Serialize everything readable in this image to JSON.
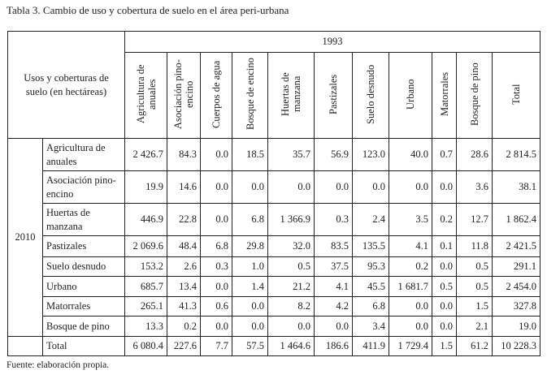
{
  "title": "Tabla 3. Cambio de uso y cobertura de suelo en el área peri-urbana",
  "row_header": "Usos y coberturas de suelo (en hectáreas)",
  "col_group": "1993",
  "row_group": "2010",
  "columns": [
    "Agricultura de anuales",
    "Asociación pino-encino",
    "Cuerpos de agua",
    "Bosque de encino",
    "Huertas de manzana",
    "Pastizales",
    "Suelo desnudo",
    "Urbano",
    "Matorrales",
    "Bosque de pino",
    "Total"
  ],
  "rows": [
    {
      "label": "Agricultura de anuales",
      "values": [
        "2 426.7",
        "84.3",
        "0.0",
        "18.5",
        "35.7",
        "56.9",
        "123.0",
        "40.0",
        "0.7",
        "28.6",
        "2 814.5"
      ]
    },
    {
      "label": "Asociación pino-encino",
      "values": [
        "19.9",
        "14.6",
        "0.0",
        "0.0",
        "0.0",
        "0.0",
        "0.0",
        "0.0",
        "0.0",
        "3.6",
        "38.1"
      ]
    },
    {
      "label": "Huertas de manzana",
      "values": [
        "446.9",
        "22.8",
        "0.0",
        "6.8",
        "1 366.9",
        "0.3",
        "2.4",
        "3.5",
        "0.2",
        "12.7",
        "1 862.4"
      ]
    },
    {
      "label": "Pastizales",
      "values": [
        "2 069.6",
        "48.4",
        "6.8",
        "29.8",
        "32.0",
        "83.5",
        "135.5",
        "4.1",
        "0.1",
        "11.8",
        "2 421.5"
      ]
    },
    {
      "label": "Suelo desnudo",
      "values": [
        "153.2",
        "2.6",
        "0.3",
        "1.0",
        "0.5",
        "37.5",
        "95.3",
        "0.2",
        "0.0",
        "0.5",
        "291.1"
      ]
    },
    {
      "label": "Urbano",
      "values": [
        "685.7",
        "13.4",
        "0.0",
        "1.4",
        "21.2",
        "4.1",
        "45.5",
        "1 681.7",
        "0.5",
        "0.5",
        "2 454.0"
      ]
    },
    {
      "label": "Matorrales",
      "values": [
        "265.1",
        "41.3",
        "0.6",
        "0.0",
        "8.2",
        "4.2",
        "6.8",
        "0.0",
        "0.0",
        "1.5",
        "327.8"
      ]
    },
    {
      "label": "Bosque de pino",
      "values": [
        "13.3",
        "0.2",
        "0.0",
        "0.0",
        "0.0",
        "0.0",
        "3.4",
        "0.0",
        "0.0",
        "2.1",
        "19.0"
      ]
    },
    {
      "label": "Total",
      "values": [
        "6 080.4",
        "227.6",
        "7.7",
        "57.5",
        "1 464.6",
        "186.6",
        "411.9",
        "1 729.4",
        "1.5",
        "61.2",
        "10 228.3"
      ]
    }
  ],
  "source": "Fuente: elaboración propia."
}
